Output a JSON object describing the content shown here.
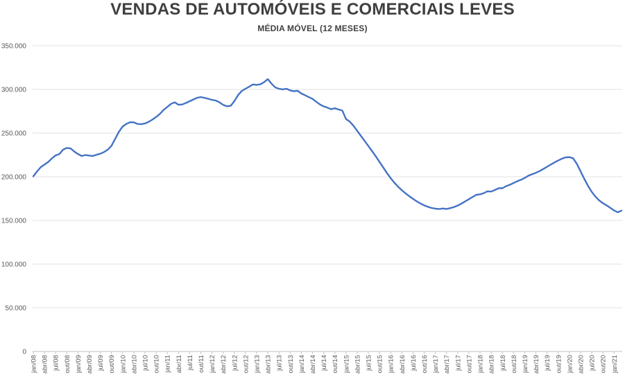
{
  "chart": {
    "title": "VENDAS DE AUTOMÓVEIS E COMERCIAIS LEVES",
    "subtitle": "MÉDIA MÓVEL (12 MESES)"
  },
  "chart_data": {
    "type": "line",
    "title": "VENDAS DE AUTOMÓVEIS E COMERCIAIS LEVES",
    "subtitle": "MÉDIA MÓVEL (12 MESES)",
    "grid": "horizontal",
    "legend": "none",
    "line_color": "#4472C4",
    "ylim": [
      0,
      350000
    ],
    "y_tick_step": 50000,
    "y_tick_labels": [
      "0",
      "50.000",
      "100.000",
      "150.000",
      "200.000",
      "250.000",
      "300.000",
      "350.000"
    ],
    "x_monthly_start": "jan/08",
    "x_tick_every_months": 3,
    "x_tick_labels": [
      "jan/08",
      "abr/08",
      "jul/08",
      "out/08",
      "jan/09",
      "abr/09",
      "jul/09",
      "out/09",
      "jan/10",
      "abr/10",
      "jul/10",
      "out/10",
      "jan/11",
      "abr/11",
      "jul/11",
      "out/11",
      "jan/12",
      "abr/12",
      "jul/12",
      "out/12",
      "jan/13",
      "abr/13",
      "jul/13",
      "out/13",
      "jan/14",
      "abr/14",
      "jul/14",
      "out/14",
      "jan/15",
      "abr/15",
      "jul/15",
      "out/15",
      "jan/16",
      "abr/16",
      "jul/16",
      "out/16",
      "jan/17",
      "abr/17",
      "jul/17",
      "out/17",
      "jan/18",
      "abr/18",
      "jul/18",
      "out/18",
      "jan/19",
      "abr/19",
      "jul/19",
      "out/19",
      "jan/20",
      "abr/20",
      "jul/20",
      "out/20",
      "jan/21"
    ],
    "series": [
      {
        "name": "média móvel (12 meses)",
        "values": [
          200500,
          206000,
          211000,
          214000,
          217000,
          221000,
          224500,
          226000,
          231000,
          233000,
          232500,
          229000,
          226000,
          223800,
          224900,
          224300,
          223800,
          225200,
          226400,
          228300,
          231000,
          235500,
          243500,
          251500,
          257500,
          260500,
          262500,
          262300,
          260500,
          260200,
          261000,
          263000,
          265500,
          268500,
          272000,
          276500,
          280000,
          283500,
          285200,
          282500,
          282800,
          284500,
          286500,
          288500,
          290500,
          291300,
          290300,
          289300,
          288000,
          287300,
          285200,
          282300,
          280700,
          281200,
          286500,
          293500,
          298300,
          300800,
          303200,
          305700,
          305200,
          305900,
          308300,
          311800,
          306500,
          302300,
          300800,
          300100,
          300800,
          298900,
          297900,
          298400,
          295300,
          293300,
          291200,
          289200,
          285900,
          282800,
          280600,
          279100,
          277400,
          278400,
          277100,
          275800,
          266100,
          263200,
          258400,
          252600,
          246800,
          241000,
          235200,
          229400,
          223300,
          217000,
          210600,
          204200,
          198400,
          193200,
          188600,
          184600,
          181000,
          177700,
          174700,
          171900,
          169400,
          167300,
          165600,
          164300,
          163600,
          163100,
          163700,
          163200,
          164100,
          165400,
          167100,
          169300,
          171800,
          174400,
          176900,
          179400,
          179900,
          181300,
          183400,
          183100,
          184900,
          186900,
          186900,
          189300,
          190900,
          192900,
          194900,
          196600,
          198700,
          201300,
          202900,
          204600,
          206600,
          209000,
          211500,
          214000,
          216400,
          218700,
          220700,
          222200,
          222500,
          221200,
          214800,
          206200,
          197600,
          189600,
          182700,
          177200,
          172900,
          169800,
          167200,
          164400,
          161400,
          159400,
          161300
        ]
      }
    ]
  }
}
